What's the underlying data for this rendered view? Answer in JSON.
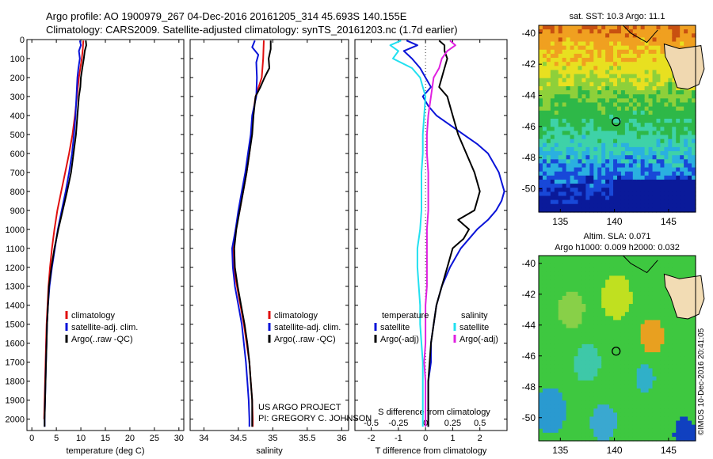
{
  "header": {
    "line1": "Argo profile: AO 1900979_267 04-Dec-2016 20161205_314 45.693S 140.155E",
    "line2": "Climatology: CARS2009. Satellite-adjusted climatology: synTS_20161203.nc (1.7d earlier)"
  },
  "side_credit": "©IMOS 10-Dec-2016 20:41:05",
  "project_text": [
    "US ARGO PROJECT",
    "PI: GREGORY C. JOHNSON"
  ],
  "colors": {
    "red": "#e01010",
    "blue": "#0a14d8",
    "black": "#000000",
    "cyan": "#22e0f0",
    "magenta": "#e020e0"
  },
  "chart_data": [
    {
      "type": "line",
      "xlabel": "temperature (deg C)",
      "ylabel": "",
      "xlim": [
        -1,
        31
      ],
      "ylim": [
        2060,
        0
      ],
      "xticks": [
        0,
        5,
        10,
        15,
        20,
        25,
        30
      ],
      "yticks": [
        0,
        100,
        200,
        300,
        400,
        500,
        600,
        700,
        800,
        900,
        1000,
        1100,
        1200,
        1300,
        1400,
        1500,
        1600,
        1700,
        1800,
        1900,
        2000
      ],
      "legend": [
        "climatology",
        "satellite-adj. clim.",
        "Argo(..raw -QC)"
      ],
      "series": [
        {
          "name": "climatology",
          "color": "red",
          "y": [
            5,
            50,
            100,
            150,
            200,
            300,
            400,
            500,
            600,
            700,
            800,
            900,
            1000,
            1100,
            1200,
            1300,
            1400,
            1500,
            1600,
            1700,
            1800,
            1900,
            2000
          ],
          "x": [
            10.5,
            10.4,
            10.2,
            9.9,
            9.6,
            9.2,
            8.8,
            8.3,
            7.6,
            6.8,
            6.0,
            5.2,
            4.6,
            4.1,
            3.7,
            3.4,
            3.2,
            3.0,
            2.9,
            2.8,
            2.7,
            2.6,
            2.5
          ]
        },
        {
          "name": "satellite-adj. clim.",
          "color": "blue",
          "y": [
            5,
            30,
            60,
            100,
            150,
            200,
            300,
            400,
            500,
            600,
            700,
            800,
            900,
            1000,
            1100,
            1200,
            1300,
            1400,
            1500,
            1600,
            1700,
            1800,
            1900,
            2000,
            2040
          ],
          "x": [
            9.8,
            10.0,
            9.6,
            9.8,
            9.5,
            9.3,
            9.1,
            8.9,
            8.6,
            8.2,
            7.6,
            6.9,
            6.1,
            5.3,
            4.7,
            4.1,
            3.6,
            3.3,
            3.1,
            3.0,
            2.9,
            2.8,
            2.7,
            2.6,
            2.6
          ]
        },
        {
          "name": "Argo(..raw -QC)",
          "color": "black",
          "y": [
            5,
            30,
            60,
            100,
            150,
            200,
            250,
            300,
            400,
            500,
            600,
            700,
            800,
            900,
            1000,
            1100,
            1200,
            1300,
            1400,
            1500,
            1600,
            1700,
            1800,
            1900,
            2000,
            2040
          ],
          "x": [
            11.0,
            11.1,
            10.8,
            10.6,
            10.3,
            10.0,
            9.9,
            9.6,
            9.3,
            9.0,
            8.5,
            8.0,
            7.2,
            6.3,
            5.4,
            4.6,
            4.0,
            3.5,
            3.3,
            3.1,
            3.0,
            2.9,
            2.8,
            2.7,
            2.6,
            2.6
          ]
        }
      ]
    },
    {
      "type": "line",
      "xlabel": "salinity",
      "ylabel": "",
      "xlim": [
        33.8,
        36.1
      ],
      "ylim": [
        2060,
        0
      ],
      "xticks": [
        34,
        34.5,
        35,
        35.5,
        36
      ],
      "legend": [
        "climatology",
        "satellite-adj. clim.",
        "Argo(..raw -QC)"
      ],
      "series": [
        {
          "name": "climatology",
          "color": "red",
          "y": [
            5,
            100,
            200,
            300,
            400,
            500,
            600,
            700,
            800,
            900,
            1000,
            1100,
            1200,
            1300,
            1400,
            1500,
            1600,
            1700,
            1800,
            1900,
            2000,
            2040
          ],
          "x": [
            34.87,
            34.86,
            34.84,
            34.75,
            34.71,
            34.69,
            34.66,
            34.62,
            34.57,
            34.52,
            34.46,
            34.42,
            34.43,
            34.48,
            34.53,
            34.58,
            34.62,
            34.66,
            34.68,
            34.7,
            34.71,
            34.71
          ]
        },
        {
          "name": "satellite-adj. clim.",
          "color": "blue",
          "y": [
            5,
            40,
            80,
            120,
            200,
            300,
            400,
            500,
            600,
            700,
            800,
            900,
            1000,
            1100,
            1200,
            1300,
            1400,
            1500,
            1600,
            1700,
            1800,
            1900,
            2000,
            2040
          ],
          "x": [
            34.74,
            34.7,
            34.79,
            34.76,
            34.77,
            34.76,
            34.7,
            34.68,
            34.64,
            34.6,
            34.55,
            34.5,
            34.46,
            34.41,
            34.42,
            34.45,
            34.5,
            34.55,
            34.58,
            34.61,
            34.63,
            34.65,
            34.66,
            34.66
          ]
        },
        {
          "name": "Argo(..raw -QC)",
          "color": "black",
          "y": [
            5,
            50,
            100,
            150,
            200,
            250,
            300,
            400,
            500,
            600,
            700,
            800,
            900,
            1000,
            1100,
            1200,
            1300,
            1400,
            1500,
            1600,
            1700,
            1800,
            1900,
            2000,
            2040
          ],
          "x": [
            34.97,
            34.97,
            34.94,
            34.95,
            34.88,
            34.82,
            34.75,
            34.72,
            34.7,
            34.66,
            34.62,
            34.57,
            34.52,
            34.47,
            34.44,
            34.45,
            34.49,
            34.54,
            34.59,
            34.63,
            34.66,
            34.68,
            34.7,
            34.7,
            34.7
          ]
        }
      ]
    },
    {
      "type": "line",
      "xlabel": "T difference from climatology",
      "xlabel_top": "S difference from climatology",
      "xlim": [
        -2.6,
        3.0
      ],
      "ylim": [
        2060,
        0
      ],
      "xticks": [
        -2,
        -1,
        0,
        1,
        2
      ],
      "xticks_top": [
        -0.5,
        -0.25,
        0,
        0.25,
        0.5
      ],
      "xtop_scale": 4,
      "legend": [
        "temperature",
        "satellite",
        "Argo(-adj)",
        "salinity",
        "satellite",
        "Argo(-adj)"
      ],
      "series": [
        {
          "name": "temperature satellite",
          "color": "blue",
          "y": [
            5,
            30,
            60,
            100,
            150,
            200,
            250,
            300,
            350,
            400,
            450,
            500,
            550,
            600,
            650,
            700,
            750,
            800,
            850,
            900,
            950,
            1000,
            1100,
            1200,
            1300,
            1400,
            1500,
            1600,
            1700,
            1800,
            1900,
            2000,
            2040
          ],
          "x": [
            -0.7,
            -0.3,
            -0.8,
            -0.5,
            -0.2,
            0.0,
            0.2,
            -0.1,
            0.1,
            0.4,
            0.9,
            1.4,
            1.9,
            2.3,
            2.5,
            2.7,
            2.8,
            2.9,
            2.8,
            2.6,
            2.3,
            1.9,
            1.3,
            0.9,
            0.6,
            0.4,
            0.3,
            0.2,
            0.2,
            0.1,
            0.1,
            0.1,
            0.1
          ]
        },
        {
          "name": "temperature Argo(-adj)",
          "color": "black",
          "y": [
            5,
            30,
            60,
            100,
            150,
            200,
            250,
            300,
            400,
            500,
            600,
            700,
            800,
            900,
            950,
            1000,
            1050,
            1100,
            1200,
            1300,
            1400,
            1500,
            1600,
            1700,
            1800,
            1900,
            2000,
            2040
          ],
          "x": [
            0.5,
            0.7,
            0.7,
            0.8,
            0.7,
            0.6,
            0.5,
            0.8,
            1.0,
            1.2,
            1.5,
            1.8,
            2.0,
            1.8,
            1.2,
            1.6,
            1.4,
            1.0,
            0.8,
            0.6,
            0.4,
            0.3,
            0.2,
            0.15,
            0.1,
            0.1,
            0.1,
            0.1
          ]
        },
        {
          "name": "salinity satellite",
          "color": "cyan",
          "y": [
            5,
            30,
            60,
            100,
            150,
            200,
            300,
            400,
            500,
            600,
            700,
            800,
            900,
            1000,
            1100,
            1200,
            1300,
            1400,
            1500,
            1600,
            1700,
            1800,
            1900,
            2000,
            2040
          ],
          "x": [
            -0.9,
            -1.3,
            -1.0,
            -1.2,
            -0.5,
            -0.2,
            0.0,
            -0.05,
            -0.1,
            -0.1,
            -0.15,
            -0.15,
            -0.15,
            -0.2,
            -0.3,
            -0.3,
            -0.25,
            -0.2,
            -0.2,
            -0.15,
            -0.1,
            -0.1,
            -0.1,
            -0.1,
            -0.1
          ]
        },
        {
          "name": "salinity Argo(-adj)",
          "color": "magenta",
          "y": [
            5,
            30,
            60,
            100,
            150,
            200,
            300,
            400,
            500,
            600,
            700,
            800,
            900,
            1000,
            1100,
            1200,
            1300,
            1400,
            1500,
            1600,
            1700,
            1800,
            1900,
            2000,
            2040
          ],
          "x": [
            0.9,
            1.1,
            0.8,
            0.6,
            0.5,
            0.3,
            0.2,
            0.1,
            0.05,
            0.05,
            0.1,
            0.1,
            0.1,
            0.05,
            0.05,
            0.05,
            0.05,
            0.0,
            0.0,
            0.0,
            -0.05,
            0.0,
            0.0,
            0.0,
            0.0
          ]
        }
      ]
    },
    {
      "type": "heatmap",
      "title": "sat. SST: 10.3 Argo: 11.1",
      "xlim": [
        133,
        147.5
      ],
      "ylim": [
        -51.5,
        -39.5
      ],
      "xticks": [
        135,
        140,
        145
      ],
      "yticks": [
        -40,
        -42,
        -44,
        -46,
        -48,
        -50
      ],
      "marker": [
        140.155,
        -45.693
      ]
    },
    {
      "type": "heatmap",
      "title_lines": [
        "Altim. SLA: 0.071",
        "Argo h1000: 0.009 h2000: 0.032"
      ],
      "xlim": [
        133,
        147.5
      ],
      "ylim": [
        -51.5,
        -39.5
      ],
      "xticks": [
        135,
        140,
        145
      ],
      "yticks": [
        -40,
        -42,
        -44,
        -46,
        -48,
        -50
      ],
      "marker": [
        140.155,
        -45.693
      ]
    }
  ]
}
